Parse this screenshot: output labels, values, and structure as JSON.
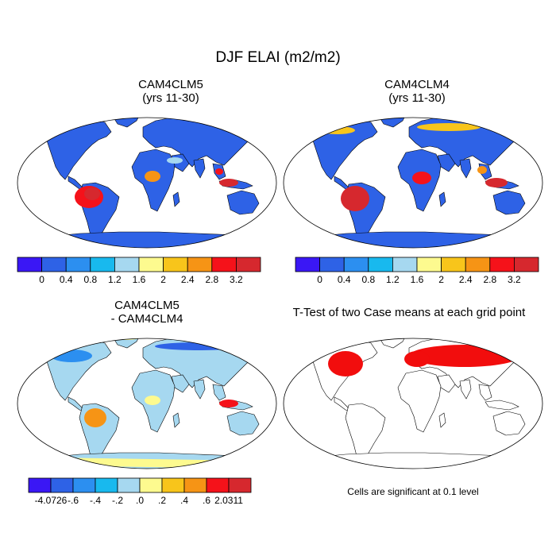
{
  "main_title": "DJF ELAI (m2/m2)",
  "panels": {
    "top_left": {
      "title_line1": "CAM4CLM5",
      "title_line2": "(yrs 11-30)"
    },
    "top_right": {
      "title_line1": "CAM4CLM4",
      "title_line2": "(yrs 11-30)"
    },
    "bottom_left": {
      "title_line1": "CAM4CLM5",
      "title_line2": "- CAM4CLM4"
    },
    "bottom_right": {
      "title": "T-Test of two Case means at each grid point",
      "note": "Cells are significant at 0.1 level"
    }
  },
  "colorbars": {
    "absolute": {
      "colors": [
        "#3a17f5",
        "#2e62e6",
        "#2c8ff0",
        "#18b9ee",
        "#a6d8f0",
        "#fdfa8f",
        "#f8c51b",
        "#f69415",
        "#f5121a",
        "#d6282e"
      ],
      "labels": [
        "0",
        "0.4",
        "0.8",
        "1.2",
        "1.6",
        "2",
        "2.4",
        "2.8",
        "3.2"
      ]
    },
    "difference": {
      "colors": [
        "#3a17f5",
        "#2e62e6",
        "#2c8ff0",
        "#18b9ee",
        "#a6d8f0",
        "#fdfa8f",
        "#f8c51b",
        "#f69415",
        "#f5121a",
        "#d6282e"
      ],
      "labels": [
        "-4.0726",
        "-.6",
        "-.4",
        "-.2",
        ".0",
        ".2",
        ".4",
        ".6",
        "2.0311"
      ]
    }
  },
  "colors": {
    "significant": "#f20d0d",
    "outline": "#000000"
  }
}
